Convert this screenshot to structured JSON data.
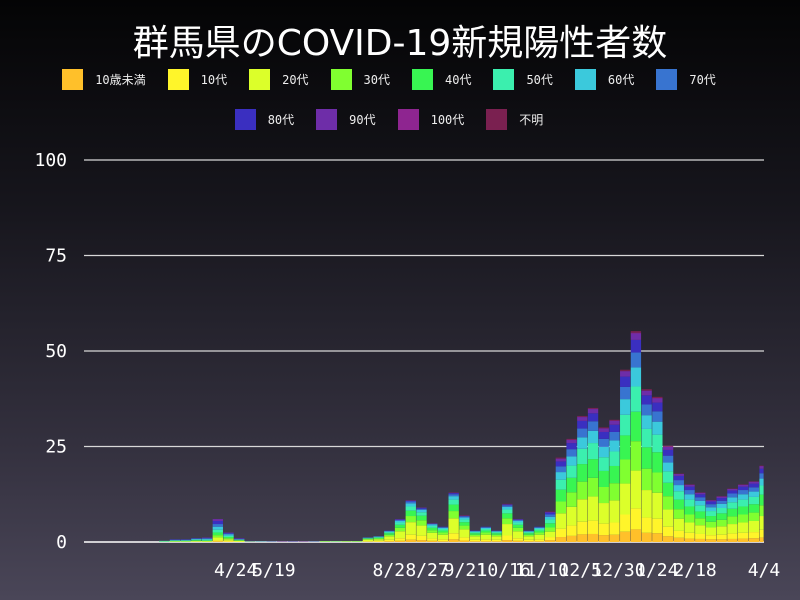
{
  "chart_data": {
    "type": "bar",
    "stacked": true,
    "title": "群馬県のCOVID-19新規陽性者数",
    "xlabel": "",
    "ylabel": "",
    "ylim": [
      0,
      100
    ],
    "xlim": [
      "2020-01-16",
      "2021-04-04"
    ],
    "grid": true,
    "legend_position": "top",
    "yticks": [
      0,
      25,
      50,
      75,
      100
    ],
    "xticks": [
      {
        "date": "2020-04-24",
        "label": "4/24"
      },
      {
        "date": "2020-05-19",
        "label": "5/19"
      },
      {
        "date": "2020-08-02",
        "label": "8/2"
      },
      {
        "date": "2020-08-27",
        "label": "8/27"
      },
      {
        "date": "2020-09-21",
        "label": "9/21"
      },
      {
        "date": "2020-10-16",
        "label": "10/16"
      },
      {
        "date": "2020-11-10",
        "label": "11/10"
      },
      {
        "date": "2020-12-05",
        "label": "12/5"
      },
      {
        "date": "2020-12-30",
        "label": "12/30"
      },
      {
        "date": "2021-01-24",
        "label": "1/24"
      },
      {
        "date": "2021-02-18",
        "label": "2/18"
      },
      {
        "date": "2021-04-04",
        "label": "4/4"
      }
    ],
    "x": [
      "2020-03-05",
      "2020-03-12",
      "2020-03-19",
      "2020-03-26",
      "2020-04-02",
      "2020-04-09",
      "2020-04-16",
      "2020-04-23",
      "2020-04-30",
      "2020-05-07",
      "2020-05-14",
      "2020-05-21",
      "2020-05-28",
      "2020-06-04",
      "2020-06-11",
      "2020-06-18",
      "2020-06-25",
      "2020-07-02",
      "2020-07-09",
      "2020-07-16",
      "2020-07-23",
      "2020-07-30",
      "2020-08-06",
      "2020-08-13",
      "2020-08-20",
      "2020-08-27",
      "2020-09-03",
      "2020-09-10",
      "2020-09-17",
      "2020-09-24",
      "2020-10-01",
      "2020-10-08",
      "2020-10-15",
      "2020-10-22",
      "2020-10-29",
      "2020-11-05",
      "2020-11-12",
      "2020-11-19",
      "2020-11-26",
      "2020-12-03",
      "2020-12-10",
      "2020-12-17",
      "2020-12-24",
      "2020-12-31",
      "2021-01-07",
      "2021-01-14",
      "2021-01-21",
      "2021-01-28",
      "2021-02-04",
      "2021-02-11",
      "2021-02-18",
      "2021-02-25",
      "2021-03-04",
      "2021-03-11",
      "2021-03-18",
      "2021-03-25",
      "2021-04-01"
    ],
    "series": [
      {
        "name": "10歳未満",
        "color": "#FFC02A",
        "values": [
          0,
          0,
          0,
          0,
          0,
          0.2,
          0.1,
          0,
          0,
          0,
          0,
          0,
          0,
          0,
          0,
          0,
          0,
          0,
          0,
          0.1,
          0.1,
          0.2,
          0.3,
          0.6,
          0.5,
          0.3,
          0.2,
          0.7,
          0.4,
          0.2,
          0.2,
          0.2,
          0.5,
          0.3,
          0.2,
          0.2,
          0.5,
          1.3,
          1.6,
          2.0,
          2.1,
          1.8,
          1.9,
          2.7,
          3.3,
          2.4,
          2.3,
          1.5,
          1.1,
          0.9,
          0.8,
          0.7,
          0.7,
          0.8,
          0.9,
          1.0,
          1.2
        ]
      },
      {
        "name": "10代",
        "color": "#FFF52A",
        "values": [
          0,
          0,
          0,
          0.1,
          0,
          0.3,
          0.2,
          0.1,
          0,
          0,
          0,
          0,
          0,
          0,
          0,
          0,
          0,
          0.1,
          0,
          0.1,
          0.2,
          0.4,
          0.7,
          1.3,
          1.1,
          0.6,
          0.5,
          1.6,
          0.8,
          0.4,
          0.5,
          0.4,
          1.2,
          0.7,
          0.4,
          0.5,
          0.8,
          2.2,
          2.7,
          3.3,
          3.5,
          3.0,
          3.2,
          4.5,
          5.5,
          4.0,
          3.8,
          2.5,
          1.8,
          1.5,
          1.3,
          1.1,
          1.2,
          1.4,
          1.5,
          1.6,
          2.0
        ]
      },
      {
        "name": "20代",
        "color": "#DCFF2A",
        "values": [
          0,
          0.1,
          0.1,
          0.1,
          0.2,
          0.7,
          0.4,
          0.2,
          0.1,
          0,
          0,
          0,
          0,
          0,
          0,
          0.1,
          0.1,
          0,
          0.1,
          0.4,
          0.4,
          0.9,
          1.8,
          3.3,
          2.7,
          1.5,
          1.2,
          3.9,
          2.1,
          0.9,
          1.2,
          0.9,
          3.0,
          1.8,
          0.9,
          1.2,
          1.4,
          4.0,
          4.9,
          5.9,
          6.3,
          5.4,
          5.8,
          8.1,
          9.9,
          7.2,
          6.8,
          4.5,
          3.2,
          2.7,
          2.3,
          2.0,
          2.2,
          2.5,
          2.7,
          2.9,
          3.6
        ]
      },
      {
        "name": "30代",
        "color": "#80FF30",
        "values": [
          0.1,
          0.1,
          0.1,
          0.1,
          0.1,
          0.6,
          0.3,
          0.1,
          0,
          0,
          0,
          0,
          0,
          0,
          0,
          0,
          0,
          0,
          0,
          0.2,
          0.2,
          0.4,
          0.9,
          1.6,
          1.4,
          0.7,
          0.6,
          1.9,
          1.0,
          0.4,
          0.6,
          0.4,
          1.5,
          0.9,
          0.4,
          0.6,
          1.1,
          3.1,
          3.8,
          4.6,
          4.9,
          4.2,
          4.5,
          6.3,
          7.7,
          5.6,
          5.3,
          3.5,
          2.5,
          2.1,
          1.8,
          1.5,
          1.7,
          2.0,
          2.1,
          2.2,
          2.8
        ]
      },
      {
        "name": "40代",
        "color": "#38F552",
        "values": [
          0,
          0.1,
          0.1,
          0.2,
          0.1,
          0.7,
          0.3,
          0.1,
          0,
          0,
          0,
          0,
          0,
          0,
          0,
          0.1,
          0,
          0.1,
          0.1,
          0.1,
          0.2,
          0.4,
          0.8,
          1.4,
          1.2,
          0.6,
          0.5,
          1.7,
          0.9,
          0.4,
          0.5,
          0.4,
          1.3,
          0.8,
          0.4,
          0.5,
          1.1,
          3.1,
          3.8,
          4.6,
          4.9,
          4.2,
          4.5,
          6.3,
          7.7,
          5.6,
          5.3,
          3.5,
          2.5,
          2.1,
          1.8,
          1.5,
          1.7,
          2.0,
          2.1,
          2.2,
          2.8
        ]
      },
      {
        "name": "50代",
        "color": "#3BEFAE",
        "values": [
          0.1,
          0.1,
          0.1,
          0.1,
          0.2,
          0.7,
          0.3,
          0.1,
          0,
          0,
          0,
          0,
          0,
          0,
          0,
          0,
          0.1,
          0,
          0,
          0.1,
          0.2,
          0.3,
          0.6,
          1.1,
          0.9,
          0.5,
          0.4,
          1.3,
          0.7,
          0.3,
          0.4,
          0.3,
          1.0,
          0.6,
          0.3,
          0.4,
          1.0,
          2.6,
          3.2,
          4.0,
          4.2,
          3.6,
          3.8,
          5.4,
          6.6,
          4.8,
          4.6,
          3.0,
          2.2,
          1.8,
          1.6,
          1.3,
          1.4,
          1.7,
          1.8,
          1.9,
          2.4
        ]
      },
      {
        "name": "60代",
        "color": "#3BC9DC",
        "values": [
          0.1,
          0.1,
          0.1,
          0.2,
          0.2,
          0.8,
          0.4,
          0.1,
          0.1,
          0.1,
          0,
          0,
          0,
          0,
          0,
          0,
          0,
          0,
          0,
          0.1,
          0.1,
          0.2,
          0.4,
          0.8,
          0.6,
          0.4,
          0.3,
          0.9,
          0.5,
          0.2,
          0.3,
          0.2,
          0.7,
          0.4,
          0.2,
          0.3,
          0.7,
          2.0,
          2.4,
          3.0,
          3.2,
          2.7,
          2.9,
          4.1,
          5.0,
          3.6,
          3.4,
          2.3,
          1.6,
          1.4,
          1.2,
          1.0,
          1.1,
          1.3,
          1.4,
          1.4,
          1.8
        ]
      },
      {
        "name": "70代",
        "color": "#3874D0",
        "values": [
          0,
          0.1,
          0.1,
          0.1,
          0.2,
          0.7,
          0.2,
          0.1,
          0,
          0,
          0.1,
          0,
          0,
          0,
          0.1,
          0,
          0,
          0,
          0,
          0.1,
          0.1,
          0.1,
          0.3,
          0.5,
          0.3,
          0.2,
          0.2,
          0.5,
          0.3,
          0.1,
          0.2,
          0.1,
          0.4,
          0.3,
          0.1,
          0.2,
          0.6,
          1.5,
          1.9,
          2.3,
          2.5,
          2.1,
          2.2,
          3.2,
          3.9,
          2.8,
          2.7,
          1.8,
          1.3,
          1.1,
          0.9,
          0.8,
          0.8,
          1.0,
          1.1,
          1.1,
          1.4
        ]
      },
      {
        "name": "80代",
        "color": "#3A2FC0",
        "values": [
          0,
          0.1,
          0.1,
          0.1,
          0.1,
          0.8,
          0.2,
          0.1,
          0.1,
          0,
          0,
          0,
          0.1,
          0,
          0,
          0,
          0,
          0,
          0,
          0,
          0,
          0.1,
          0.1,
          0.2,
          0.2,
          0.1,
          0.1,
          0.3,
          0.1,
          0.1,
          0.1,
          0.1,
          0.2,
          0.1,
          0.1,
          0.1,
          0.5,
          1.3,
          1.6,
          2.0,
          2.1,
          1.8,
          1.9,
          2.7,
          3.3,
          2.4,
          2.3,
          1.5,
          1.1,
          0.9,
          0.8,
          0.7,
          0.7,
          0.8,
          0.9,
          1.0,
          1.2
        ]
      },
      {
        "name": "90代",
        "color": "#6E2DA8",
        "values": [
          0,
          0,
          0,
          0,
          0.1,
          0.5,
          0.1,
          0.1,
          0,
          0,
          0,
          0.1,
          0,
          0.1,
          0,
          0,
          0,
          0,
          0,
          0,
          0,
          0,
          0.1,
          0.1,
          0.1,
          0,
          0,
          0.1,
          0.1,
          0,
          0,
          0,
          0.1,
          0.1,
          0,
          0,
          0.2,
          0.7,
          0.8,
          1.0,
          1.1,
          0.9,
          1.0,
          1.4,
          1.7,
          1.2,
          1.1,
          0.8,
          0.5,
          0.5,
          0.4,
          0.3,
          0.4,
          0.4,
          0.5,
          0.5,
          0.6
        ]
      },
      {
        "name": "100代",
        "color": "#8E2590",
        "values": [
          0,
          0,
          0,
          0,
          0,
          0,
          0,
          0,
          0,
          0,
          0,
          0,
          0,
          0,
          0,
          0,
          0,
          0,
          0,
          0,
          0,
          0,
          0,
          0,
          0,
          0,
          0,
          0,
          0,
          0,
          0,
          0,
          0,
          0,
          0,
          0,
          0,
          0.1,
          0.1,
          0.1,
          0.1,
          0.1,
          0.1,
          0.1,
          0.2,
          0.1,
          0.1,
          0.1,
          0,
          0,
          0,
          0,
          0,
          0,
          0,
          0,
          0.1
        ]
      },
      {
        "name": "不明",
        "color": "#7A2050",
        "values": [
          0,
          0,
          0,
          0,
          0,
          0,
          0,
          0,
          0,
          0,
          0,
          0,
          0,
          0,
          0,
          0,
          0,
          0,
          0,
          0,
          0,
          0,
          0,
          0.1,
          0,
          0.1,
          0,
          0.1,
          0.1,
          0,
          0,
          0,
          0.1,
          0,
          0,
          0,
          0.1,
          0.2,
          0.2,
          0.2,
          0.2,
          0.2,
          0.2,
          0.3,
          0.4,
          0.3,
          0.3,
          0.2,
          0.1,
          0.1,
          0.1,
          0.1,
          0.1,
          0.1,
          0.1,
          0.1,
          0.1
        ]
      }
    ]
  }
}
